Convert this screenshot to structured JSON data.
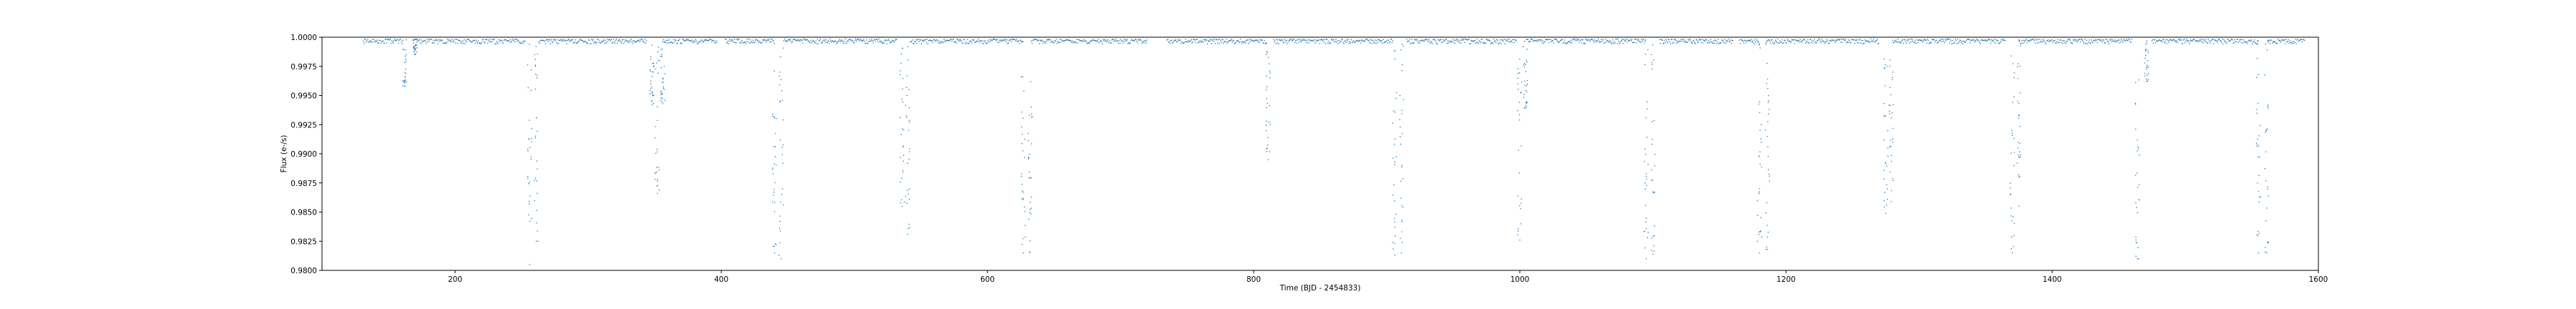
{
  "chart_data": {
    "type": "scatter",
    "title": "",
    "xlabel": "Time (BJD - 2454833)",
    "ylabel": "Flux (e-/s)",
    "xlim": [
      100,
      1600
    ],
    "ylim": [
      0.98,
      1.0
    ],
    "grid": false,
    "legend": "none",
    "marker_color": "#1f77b4",
    "xticks": [
      {
        "value": 200,
        "label": "200"
      },
      {
        "value": 400,
        "label": "400"
      },
      {
        "value": 600,
        "label": "600"
      },
      {
        "value": 800,
        "label": "800"
      },
      {
        "value": 1000,
        "label": "1000"
      },
      {
        "value": 1200,
        "label": "1200"
      },
      {
        "value": 1400,
        "label": "1400"
      },
      {
        "value": 1600,
        "label": "1600"
      }
    ],
    "yticks": [
      {
        "value": 1.0,
        "label": "1.0000"
      },
      {
        "value": 0.9975,
        "label": "0.9975"
      },
      {
        "value": 0.995,
        "label": "0.9950"
      },
      {
        "value": 0.9925,
        "label": "0.9925"
      },
      {
        "value": 0.99,
        "label": "0.9900"
      },
      {
        "value": 0.9875,
        "label": "0.9875"
      },
      {
        "value": 0.985,
        "label": "0.9850"
      },
      {
        "value": 0.9825,
        "label": "0.9825"
      },
      {
        "value": 0.98,
        "label": "0.9800"
      }
    ],
    "observation_segments": [
      {
        "start": 131,
        "end": 161
      },
      {
        "start": 169,
        "end": 253
      },
      {
        "start": 263,
        "end": 344
      },
      {
        "start": 356,
        "end": 397
      },
      {
        "start": 403,
        "end": 440
      },
      {
        "start": 447,
        "end": 532
      },
      {
        "start": 542,
        "end": 627
      },
      {
        "start": 633,
        "end": 720
      },
      {
        "start": 735,
        "end": 810
      },
      {
        "start": 815,
        "end": 905
      },
      {
        "start": 915,
        "end": 998
      },
      {
        "start": 1005,
        "end": 1095
      },
      {
        "start": 1105,
        "end": 1160
      },
      {
        "start": 1165,
        "end": 1180
      },
      {
        "start": 1185,
        "end": 1270
      },
      {
        "start": 1280,
        "end": 1365
      },
      {
        "start": 1375,
        "end": 1460
      },
      {
        "start": 1475,
        "end": 1555
      },
      {
        "start": 1562,
        "end": 1590
      }
    ],
    "baseline_flux": 0.99985,
    "dips": [
      {
        "time": 162,
        "min_flux": 0.9958
      },
      {
        "time": 170,
        "min_flux": 0.9985
      },
      {
        "time": 256,
        "min_flux": 0.9805
      },
      {
        "time": 261,
        "min_flux": 0.9825
      },
      {
        "time": 348,
        "min_flux": 0.9942
      },
      {
        "time": 352,
        "min_flux": 0.9866
      },
      {
        "time": 356,
        "min_flux": 0.9943
      },
      {
        "time": 440,
        "min_flux": 0.9815
      },
      {
        "time": 445,
        "min_flux": 0.981
      },
      {
        "time": 536,
        "min_flux": 0.9855
      },
      {
        "time": 540,
        "min_flux": 0.9831
      },
      {
        "time": 627,
        "min_flux": 0.9815
      },
      {
        "time": 632,
        "min_flux": 0.9815
      },
      {
        "time": 811,
        "min_flux": 0.9895
      },
      {
        "time": 906,
        "min_flux": 0.9813
      },
      {
        "time": 911,
        "min_flux": 0.9815
      },
      {
        "time": 1000,
        "min_flux": 0.9826
      },
      {
        "time": 1004,
        "min_flux": 0.9939
      },
      {
        "time": 1095,
        "min_flux": 0.981
      },
      {
        "time": 1100,
        "min_flux": 0.9814
      },
      {
        "time": 1180,
        "min_flux": 0.9815
      },
      {
        "time": 1186,
        "min_flux": 0.9818
      },
      {
        "time": 1275,
        "min_flux": 0.9849
      },
      {
        "time": 1279,
        "min_flux": 0.9859
      },
      {
        "time": 1370,
        "min_flux": 0.9815
      },
      {
        "time": 1375,
        "min_flux": 0.9855
      },
      {
        "time": 1464,
        "min_flux": 0.981
      },
      {
        "time": 1471,
        "min_flux": 0.9962
      },
      {
        "time": 1555,
        "min_flux": 0.9815
      },
      {
        "time": 1561,
        "min_flux": 0.9815
      }
    ]
  }
}
